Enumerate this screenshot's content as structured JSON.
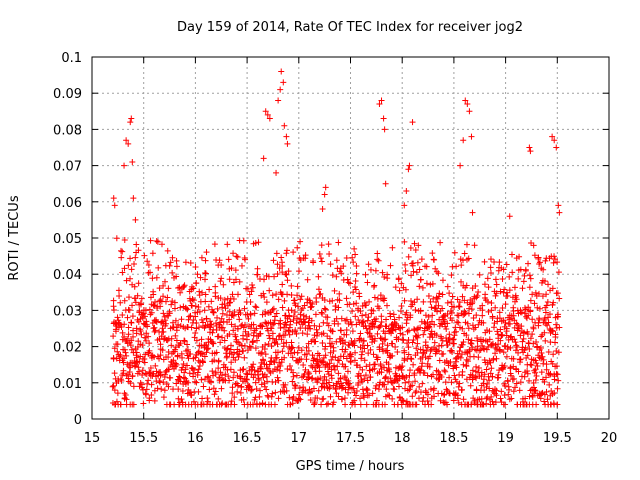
{
  "chart_data": {
    "type": "scatter",
    "title": "Day 159 of 2014, Rate Of TEC Index for receiver jog2",
    "xlabel": "GPS time / hours",
    "ylabel": "ROTI / TECUs",
    "xlim": [
      15,
      20
    ],
    "ylim": [
      0,
      0.1
    ],
    "xticks": [
      "15",
      "15.5",
      "16",
      "16.5",
      "17",
      "17.5",
      "18",
      "18.5",
      "19",
      "19.5",
      "20"
    ],
    "yticks": [
      "0",
      "0.01",
      "0.02",
      "0.03",
      "0.04",
      "0.05",
      "0.06",
      "0.07",
      "0.08",
      "0.09",
      "0.1"
    ],
    "grid": true,
    "marker": "+",
    "color": "#ff0000",
    "series": [
      {
        "name": "ROTI",
        "x_range": [
          15.2,
          19.52
        ],
        "outliers": [
          {
            "x": 15.21,
            "y": 0.061
          },
          {
            "x": 15.22,
            "y": 0.059
          },
          {
            "x": 15.31,
            "y": 0.07
          },
          {
            "x": 15.33,
            "y": 0.077
          },
          {
            "x": 15.35,
            "y": 0.076
          },
          {
            "x": 15.37,
            "y": 0.082
          },
          {
            "x": 15.38,
            "y": 0.083
          },
          {
            "x": 15.39,
            "y": 0.071
          },
          {
            "x": 15.4,
            "y": 0.061
          },
          {
            "x": 15.42,
            "y": 0.055
          },
          {
            "x": 16.66,
            "y": 0.072
          },
          {
            "x": 16.68,
            "y": 0.085
          },
          {
            "x": 16.7,
            "y": 0.084
          },
          {
            "x": 16.72,
            "y": 0.083
          },
          {
            "x": 16.78,
            "y": 0.068
          },
          {
            "x": 16.8,
            "y": 0.088
          },
          {
            "x": 16.82,
            "y": 0.091
          },
          {
            "x": 16.83,
            "y": 0.096
          },
          {
            "x": 16.85,
            "y": 0.093
          },
          {
            "x": 16.86,
            "y": 0.081
          },
          {
            "x": 16.88,
            "y": 0.078
          },
          {
            "x": 16.89,
            "y": 0.076
          },
          {
            "x": 17.23,
            "y": 0.058
          },
          {
            "x": 17.25,
            "y": 0.062
          },
          {
            "x": 17.26,
            "y": 0.064
          },
          {
            "x": 17.78,
            "y": 0.087
          },
          {
            "x": 17.8,
            "y": 0.088
          },
          {
            "x": 17.82,
            "y": 0.083
          },
          {
            "x": 17.83,
            "y": 0.08
          },
          {
            "x": 17.84,
            "y": 0.065
          },
          {
            "x": 18.02,
            "y": 0.059
          },
          {
            "x": 18.04,
            "y": 0.063
          },
          {
            "x": 18.06,
            "y": 0.069
          },
          {
            "x": 18.07,
            "y": 0.07
          },
          {
            "x": 18.1,
            "y": 0.082
          },
          {
            "x": 18.56,
            "y": 0.07
          },
          {
            "x": 18.59,
            "y": 0.077
          },
          {
            "x": 18.61,
            "y": 0.088
          },
          {
            "x": 18.63,
            "y": 0.087
          },
          {
            "x": 18.65,
            "y": 0.085
          },
          {
            "x": 18.67,
            "y": 0.078
          },
          {
            "x": 18.68,
            "y": 0.057
          },
          {
            "x": 19.04,
            "y": 0.056
          },
          {
            "x": 19.23,
            "y": 0.075
          },
          {
            "x": 19.24,
            "y": 0.074
          },
          {
            "x": 19.45,
            "y": 0.078
          },
          {
            "x": 19.47,
            "y": 0.077
          },
          {
            "x": 19.49,
            "y": 0.075
          },
          {
            "x": 19.51,
            "y": 0.059
          },
          {
            "x": 19.52,
            "y": 0.057
          }
        ],
        "bulk_y_range": [
          0.004,
          0.053
        ],
        "bulk_y_typical": [
          0.008,
          0.035
        ]
      }
    ]
  }
}
